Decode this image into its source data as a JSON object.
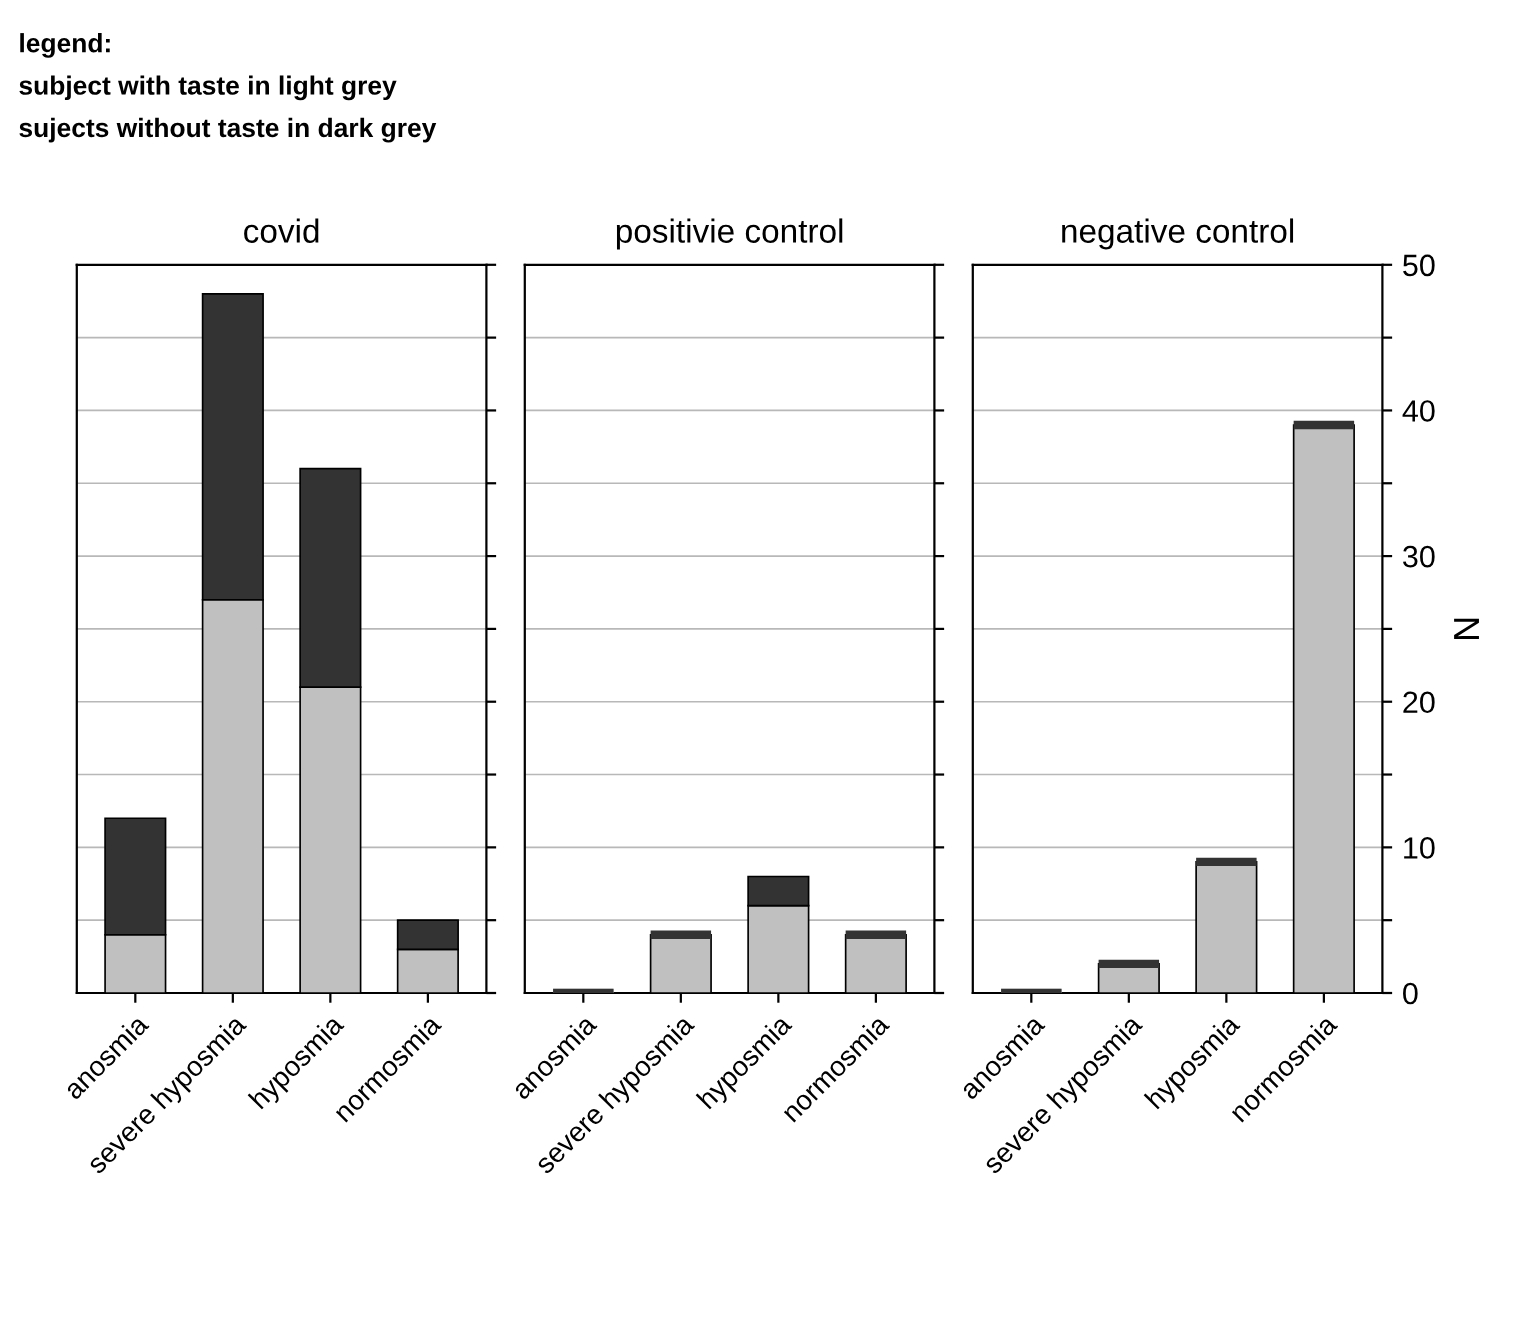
{
  "chart_data": [
    {
      "type": "bar",
      "stacked": true,
      "title": "covid",
      "categories": [
        "anosmia",
        "severe hyposmia",
        "hyposmia",
        "normosmia"
      ],
      "series": [
        {
          "color": "#c0c0c0",
          "values": [
            4,
            27,
            21,
            3
          ]
        },
        {
          "color": "#333333",
          "values": [
            8,
            21,
            15,
            2
          ]
        }
      ],
      "ylim": [
        0,
        50
      ],
      "yticks": [
        0,
        {
          "value": 5,
          "label": null
        },
        10,
        {
          "value": 15,
          "label": null
        },
        20,
        {
          "value": 25,
          "label": null
        },
        30,
        {
          "value": 35,
          "label": null
        },
        40,
        {
          "value": 45,
          "label": null
        },
        50
      ],
      "grid": "y",
      "tick_labels": "x",
      "annotations": [
        "legend:",
        "subject with taste in light grey",
        "sujects without taste in dark grey"
      ]
    },
    {
      "type": "bar",
      "stacked": true,
      "title": "positivie control",
      "categories": [
        "anosmia",
        "severe hyposmia",
        "hyposmia",
        "normosmia"
      ],
      "series": [
        {
          "color": "#c0c0c0",
          "values": [
            0,
            4,
            6,
            4
          ]
        },
        {
          "color": "#333333",
          "values": [
            0,
            0,
            2,
            0
          ]
        }
      ],
      "ylim": [
        0,
        50
      ],
      "yticks": [
        0,
        {
          "value": 5,
          "label": null
        },
        10,
        {
          "value": 15,
          "label": null
        },
        20,
        {
          "value": 25,
          "label": null
        },
        30,
        {
          "value": 35,
          "label": null
        },
        40,
        {
          "value": 45,
          "label": null
        },
        50
      ],
      "grid": "y",
      "tick_labels": "x"
    },
    {
      "type": "bar",
      "stacked": true,
      "title": "negative control",
      "ylabel": "N",
      "categories": [
        "anosmia",
        "severe hyposmia",
        "hyposmia",
        "normosmia"
      ],
      "series": [
        {
          "color": "#c0c0c0",
          "values": [
            0,
            2,
            9,
            39
          ]
        },
        {
          "color": "#333333",
          "values": [
            0,
            0,
            0,
            0
          ]
        }
      ],
      "ylim": [
        0,
        50
      ],
      "yticks": [
        0,
        {
          "value": 5,
          "label": null
        },
        10,
        {
          "value": 15,
          "label": null
        },
        20,
        {
          "value": 25,
          "label": null
        },
        30,
        {
          "value": 35,
          "label": null
        },
        40,
        {
          "value": 45,
          "label": null
        },
        50
      ],
      "grid": "y"
    }
  ]
}
